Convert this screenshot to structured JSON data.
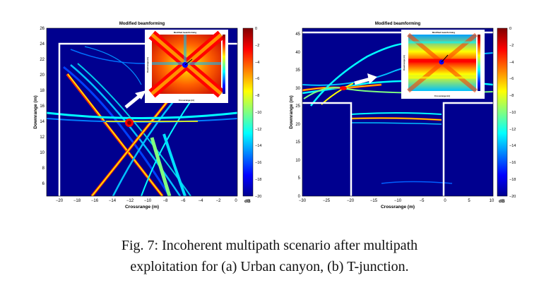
{
  "figure": {
    "caption_line1": "Fig. 7: Incoherent multipath scenario after multipath",
    "caption_line2": "exploitation for (a) Urban canyon, (b) T-junction."
  },
  "panels": [
    {
      "id": "a",
      "title": "Modified beamforming",
      "xlabel": "Crossrange (m)",
      "ylabel": "Downrange (m)",
      "xticks": [
        "−20",
        "−18",
        "−16",
        "−14",
        "−12",
        "−10",
        "−8",
        "−6",
        "−4",
        "−2",
        "0"
      ],
      "yticks": [
        "6",
        "8",
        "10",
        "12",
        "14",
        "16",
        "18",
        "20",
        "22",
        "24",
        "26"
      ],
      "inset_title": "Modified beamforming",
      "inset_xlabel": "Crossrange (m)",
      "inset_ylabel": "Downrange (m)"
    },
    {
      "id": "b",
      "title": "Modified beamforming",
      "xlabel": "Crossrange (m)",
      "ylabel": "Downrange (m)",
      "xticks": [
        "−30",
        "−25",
        "−20",
        "−15",
        "−10",
        "−5",
        "0",
        "5",
        "10"
      ],
      "yticks": [
        "0",
        "5",
        "10",
        "15",
        "20",
        "25",
        "30",
        "35",
        "40",
        "45"
      ],
      "inset_title": "Modified beamforming",
      "inset_xlabel": "Crossrange (m)",
      "inset_ylabel": "Downrange (m)"
    }
  ],
  "colorbar": {
    "unit": "dB",
    "ticks": [
      "0",
      "−2",
      "−4",
      "−6",
      "−8",
      "−10",
      "−12",
      "−14",
      "−16",
      "−18",
      "−20"
    ],
    "colors": [
      "#7f0000",
      "#ff0000",
      "#ff8000",
      "#ffff00",
      "#80ff80",
      "#00ffff",
      "#0080ff",
      "#0000ff",
      "#00008f"
    ]
  },
  "colors": {
    "background_low": "#00008f",
    "wall": "#ffffff",
    "arrow": "#ffffff"
  }
}
